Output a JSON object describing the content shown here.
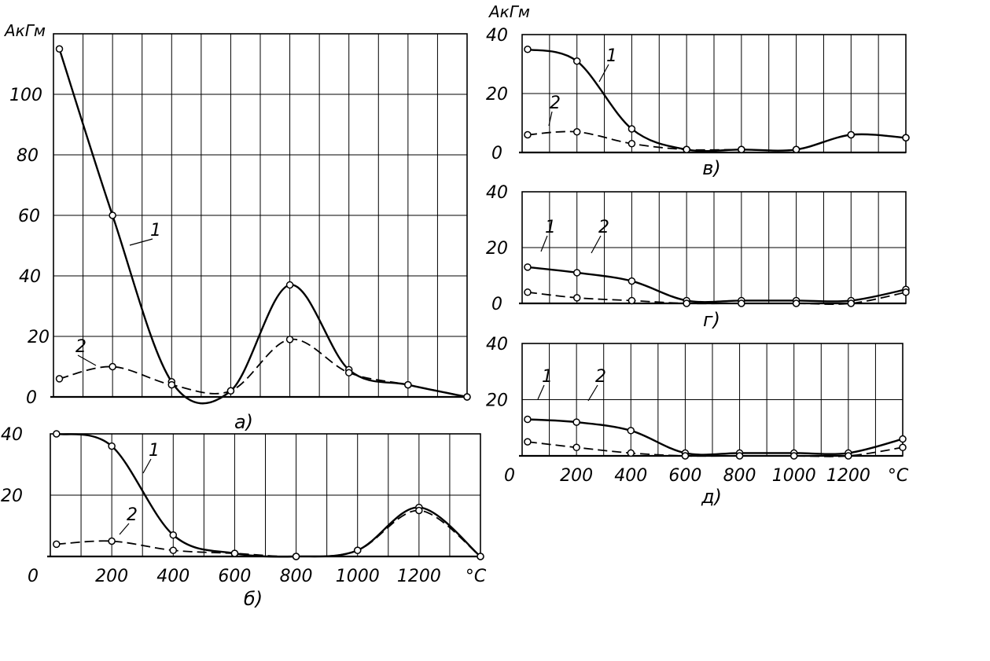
{
  "chart_data": [
    {
      "id": "a",
      "type": "line",
      "caption": "а)",
      "ylabel": "АкГм",
      "xlabel": "",
      "xlim": [
        0,
        1400
      ],
      "ylim": [
        0,
        120
      ],
      "xticks": [],
      "yticks": [
        0,
        20,
        40,
        60,
        80,
        100
      ],
      "grid": true,
      "series": [
        {
          "name": "1",
          "style": "solid",
          "x": [
            20,
            200,
            400,
            600,
            800,
            1000,
            1200,
            1400
          ],
          "y": [
            115,
            60,
            5,
            2,
            37,
            9,
            4,
            0
          ]
        },
        {
          "name": "2",
          "style": "dashed",
          "x": [
            20,
            200,
            400,
            600,
            800,
            1000,
            1200,
            1400
          ],
          "y": [
            6,
            10,
            4,
            2,
            19,
            8,
            4,
            0
          ]
        }
      ]
    },
    {
      "id": "b",
      "type": "line",
      "caption": "б)",
      "ylabel": "",
      "xlabel": "°C",
      "xlim": [
        0,
        1400
      ],
      "ylim": [
        0,
        40
      ],
      "xticks": [
        "0",
        "200",
        "400",
        "600",
        "800",
        "1000",
        "1200"
      ],
      "yticks": [
        20,
        40
      ],
      "grid": true,
      "series": [
        {
          "name": "1",
          "style": "solid",
          "x": [
            20,
            200,
            400,
            600,
            800,
            1000,
            1200,
            1400
          ],
          "y": [
            40,
            36,
            7,
            1,
            0,
            2,
            16,
            0
          ]
        },
        {
          "name": "2",
          "style": "dashed",
          "x": [
            20,
            200,
            400,
            600,
            800,
            1000,
            1200,
            1400
          ],
          "y": [
            4,
            5,
            2,
            1,
            0,
            2,
            15,
            0
          ]
        }
      ]
    },
    {
      "id": "v",
      "type": "line",
      "caption": "в)",
      "ylabel": "АкГм",
      "xlabel": "",
      "xlim": [
        0,
        1400
      ],
      "ylim": [
        0,
        40
      ],
      "xticks": [],
      "yticks": [
        0,
        20,
        40
      ],
      "grid": true,
      "series": [
        {
          "name": "1",
          "style": "solid",
          "x": [
            20,
            200,
            400,
            600,
            800,
            1000,
            1200,
            1400
          ],
          "y": [
            35,
            31,
            8,
            1,
            1,
            1,
            6,
            5
          ]
        },
        {
          "name": "2",
          "style": "dashed",
          "x": [
            20,
            200,
            400,
            600,
            800,
            1000,
            1200,
            1400
          ],
          "y": [
            6,
            7,
            3,
            1,
            1,
            1,
            6,
            5
          ]
        }
      ]
    },
    {
      "id": "g",
      "type": "line",
      "caption": "г)",
      "ylabel": "",
      "xlabel": "",
      "xlim": [
        0,
        1400
      ],
      "ylim": [
        0,
        40
      ],
      "xticks": [],
      "yticks": [
        0,
        20,
        40
      ],
      "grid": true,
      "series": [
        {
          "name": "1",
          "style": "solid",
          "x": [
            20,
            200,
            400,
            600,
            800,
            1000,
            1200,
            1400
          ],
          "y": [
            13,
            11,
            8,
            1,
            1,
            1,
            1,
            5
          ]
        },
        {
          "name": "2",
          "style": "dashed",
          "x": [
            20,
            200,
            400,
            600,
            800,
            1000,
            1200,
            1400
          ],
          "y": [
            4,
            2,
            1,
            0,
            0,
            0,
            0,
            4
          ]
        }
      ]
    },
    {
      "id": "d",
      "type": "line",
      "caption": "д)",
      "ylabel": "",
      "xlabel": "°C",
      "xlim": [
        0,
        1400
      ],
      "ylim": [
        0,
        40
      ],
      "xticks": [
        "0",
        "200",
        "400",
        "600",
        "800",
        "1000",
        "1200"
      ],
      "yticks": [
        20,
        40
      ],
      "grid": true,
      "series": [
        {
          "name": "1",
          "style": "solid",
          "x": [
            20,
            200,
            400,
            600,
            800,
            1000,
            1200,
            1400
          ],
          "y": [
            13,
            12,
            9,
            1,
            1,
            1,
            1,
            6
          ]
        },
        {
          "name": "2",
          "style": "dashed",
          "x": [
            20,
            200,
            400,
            600,
            800,
            1000,
            1200,
            1400
          ],
          "y": [
            5,
            3,
            1,
            0,
            0,
            0,
            0,
            3
          ]
        }
      ]
    }
  ]
}
